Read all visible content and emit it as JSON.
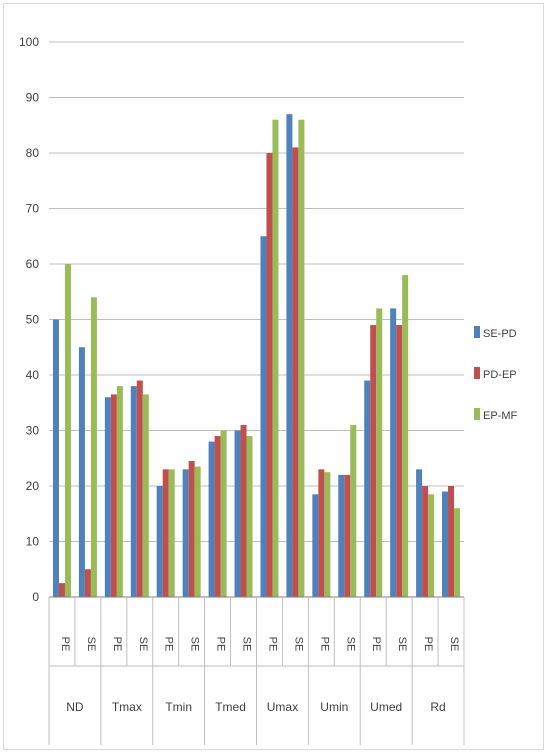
{
  "chart_data": {
    "type": "bar",
    "groups": [
      "ND",
      "Tmax",
      "Tmin",
      "Tmed",
      "Umax",
      "Umin",
      "Umed",
      "Rd"
    ],
    "subcategories": [
      "PE",
      "SE"
    ],
    "ylim": [
      0,
      100
    ],
    "yticks": [
      0,
      10,
      20,
      30,
      40,
      50,
      60,
      70,
      80,
      90,
      100
    ],
    "grid": true,
    "legend_position": "right",
    "series": [
      {
        "name": "SE-PD",
        "color": "#4f81bd",
        "values": [
          50,
          45,
          36,
          38,
          20,
          23,
          28,
          30,
          65,
          87,
          18.5,
          22,
          39,
          52,
          23,
          19
        ]
      },
      {
        "name": "PD-EP",
        "color": "#c0504d",
        "values": [
          2.5,
          5,
          36.5,
          39,
          23,
          24.5,
          29,
          31,
          80,
          81,
          23,
          22,
          49,
          49,
          20,
          20
        ]
      },
      {
        "name": "EP-MF",
        "color": "#9bbb59",
        "values": [
          60,
          54,
          38,
          36.5,
          23,
          23.5,
          30,
          29,
          86,
          86,
          22.5,
          31,
          52,
          58,
          18.5,
          16
        ]
      }
    ]
  }
}
